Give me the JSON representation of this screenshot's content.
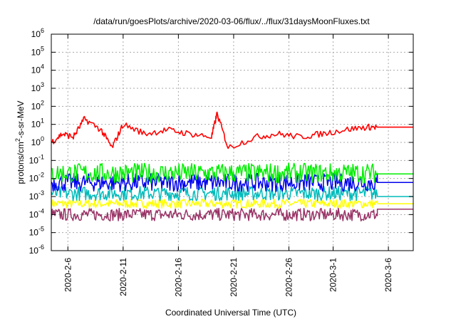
{
  "chart_data": {
    "type": "line",
    "title": "/data/run/goesPlots/archive/2020-03-06/flux/../flux/31daysMoonFluxes.txt",
    "xlabel": "Coordinated Universal Time (UTC)",
    "ylabel_base": "protons/cm",
    "ylabel_sup": "2",
    "ylabel_rest": "-s-sr-MeV",
    "yscale": "log",
    "ylim": [
      1e-06,
      1000000
    ],
    "xlim": [
      "2020-02-04T12:00",
      "2020-03-08T06:00"
    ],
    "grid": true,
    "y_ticks": [
      {
        "base": "10",
        "exp": "-6",
        "value": 1e-06
      },
      {
        "base": "10",
        "exp": "-5",
        "value": 1e-05
      },
      {
        "base": "10",
        "exp": "-4",
        "value": 0.0001
      },
      {
        "base": "10",
        "exp": "-3",
        "value": 0.001
      },
      {
        "base": "10",
        "exp": "-2",
        "value": 0.01
      },
      {
        "base": "10",
        "exp": "-1",
        "value": 0.1
      },
      {
        "base": "10",
        "exp": "0",
        "value": 1
      },
      {
        "base": "10",
        "exp": "1",
        "value": 10
      },
      {
        "base": "10",
        "exp": "2",
        "value": 100
      },
      {
        "base": "10",
        "exp": "3",
        "value": 1000
      },
      {
        "base": "10",
        "exp": "4",
        "value": 10000
      },
      {
        "base": "10",
        "exp": "5",
        "value": 100000
      },
      {
        "base": "10",
        "exp": "6",
        "value": 1000000
      }
    ],
    "x_ticks": [
      {
        "label": "2020-2-6",
        "date": "2020-02-06"
      },
      {
        "label": "2020-2-11",
        "date": "2020-02-11"
      },
      {
        "label": "2020-2-16",
        "date": "2020-02-16"
      },
      {
        "label": "2020-2-21",
        "date": "2020-02-21"
      },
      {
        "label": "2020-2-26",
        "date": "2020-02-26"
      },
      {
        "label": "2020-3-1",
        "date": "2020-03-01"
      },
      {
        "label": "2020-3-6",
        "date": "2020-03-06"
      }
    ],
    "data_end": "2020-03-05T00:00",
    "series": [
      {
        "color": "#ff0000",
        "center": 5,
        "spread": 0.45,
        "final": 7,
        "points": [
          {
            "x": "2020-02-04T12:00",
            "y": 1
          },
          {
            "x": "2020-02-05T12:00",
            "y": 3
          },
          {
            "x": "2020-02-06T12:00",
            "y": 2
          },
          {
            "x": "2020-02-07T12:00",
            "y": 20
          },
          {
            "x": "2020-02-09T00:00",
            "y": 5
          },
          {
            "x": "2020-02-10T00:00",
            "y": 0.5
          },
          {
            "x": "2020-02-11T00:00",
            "y": 10
          },
          {
            "x": "2020-02-13T00:00",
            "y": 3
          },
          {
            "x": "2020-02-15T00:00",
            "y": 5
          },
          {
            "x": "2020-02-17T00:00",
            "y": 3
          },
          {
            "x": "2020-02-19T00:00",
            "y": 2
          },
          {
            "x": "2020-02-19T12:00",
            "y": 40
          },
          {
            "x": "2020-02-20T12:00",
            "y": 0.5
          },
          {
            "x": "2020-02-23T00:00",
            "y": 2
          },
          {
            "x": "2020-02-25T00:00",
            "y": 3
          },
          {
            "x": "2020-02-27T00:00",
            "y": 2
          },
          {
            "x": "2020-02-29T00:00",
            "y": 3
          },
          {
            "x": "2020-03-02T00:00",
            "y": 5
          },
          {
            "x": "2020-03-04T00:00",
            "y": 7
          },
          {
            "x": "2020-03-05T00:00",
            "y": 7
          }
        ]
      },
      {
        "color": "#00ee00",
        "center": 0.02,
        "spread": 0.55,
        "final": 0.018
      },
      {
        "color": "#0000ee",
        "center": 0.006,
        "spread": 0.5,
        "final": 0.006
      },
      {
        "color": "#00bbbb",
        "center": 0.0015,
        "spread": 0.4,
        "final": 0.001
      },
      {
        "color": "#ffff00",
        "center": 0.0004,
        "spread": 0.25,
        "final": 0.0004
      },
      {
        "color": "#993366",
        "center": 0.0001,
        "spread": 0.35,
        "final": 0.0002
      }
    ]
  }
}
